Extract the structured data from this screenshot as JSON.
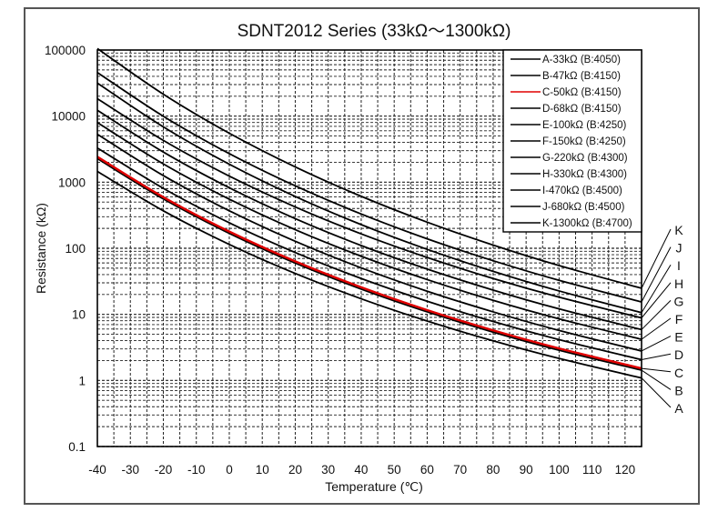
{
  "chart_data": {
    "type": "line",
    "title": "SDNT2012 Series (33kΩ～1300kΩ)",
    "xlabel": "Temperature (℃)",
    "ylabel": "Resistance (kΩ)",
    "xlim": [
      -40,
      125
    ],
    "ylim": [
      0.1,
      100000
    ],
    "yscale": "log",
    "grid": true,
    "legend_position": "top-right",
    "x_ticks": [
      "-40",
      "-30",
      "-20",
      "-10",
      "0",
      "10",
      "20",
      "30",
      "40",
      "50",
      "60",
      "70",
      "80",
      "90",
      "100",
      "110",
      "120"
    ],
    "y_ticks": [
      "100000",
      "10000",
      "1000",
      "100",
      "10",
      "1",
      "0.1"
    ],
    "x": [
      -40,
      -20,
      0,
      20,
      40,
      60,
      80,
      100,
      125
    ],
    "series": [
      {
        "name": "A-33kΩ (B:4050)",
        "label": "A",
        "color": "#000000",
        "values": [
          1455,
          369,
          114.4,
          41.6,
          17.2,
          7.92,
          3.98,
          2.15,
          1.09
        ]
      },
      {
        "name": "B-47kΩ (B:4150)",
        "label": "B",
        "color": "#000000",
        "values": [
          2275,
          558,
          168,
          59.6,
          24.1,
          10.9,
          5.38,
          2.86,
          1.43
        ]
      },
      {
        "name": "C-50kΩ (B:4150)",
        "label": "C",
        "color": "#e00000",
        "values": [
          2420,
          594,
          179,
          63.4,
          25.7,
          11.6,
          5.73,
          3.05,
          1.52
        ]
      },
      {
        "name": "D-68kΩ (B:4150)",
        "label": "D",
        "color": "#000000",
        "values": [
          3291,
          807,
          243,
          86.2,
          34.9,
          15.8,
          7.79,
          4.14,
          2.06
        ]
      },
      {
        "name": "E-100kΩ (B:4250)",
        "label": "E",
        "color": "#000000",
        "values": [
          5320,
          1260,
          369,
          127.5,
          50.5,
          22.4,
          10.9,
          5.7,
          2.79
        ]
      },
      {
        "name": "F-150kΩ (B:4250)",
        "label": "F",
        "color": "#000000",
        "values": [
          7980,
          1890,
          553,
          191,
          75.8,
          33.6,
          16.3,
          8.55,
          4.19
        ]
      },
      {
        "name": "G-220kΩ (B:4300)",
        "label": "G",
        "color": "#000000",
        "values": [
          12250,
          2857,
          824,
          281,
          110,
          48.4,
          23.3,
          12.1,
          5.88
        ]
      },
      {
        "name": "H-330kΩ (B:4300)",
        "label": "H",
        "color": "#000000",
        "values": [
          18380,
          4287,
          1236,
          422,
          165,
          72.5,
          34.9,
          18.2,
          8.82
        ]
      },
      {
        "name": "I-470kΩ (B:4500)",
        "label": "I",
        "color": "#000000",
        "values": [
          31580,
          6876,
          1871,
          608,
          228,
          96.3,
          44.8,
          22.6,
          10.6
        ]
      },
      {
        "name": "J-680kΩ (B:4500)",
        "label": "J",
        "color": "#000000",
        "values": [
          45700,
          9948,
          2707,
          880,
          330,
          139,
          64.8,
          32.7,
          15.4
        ]
      },
      {
        "name": "K-1300kΩ (B:4700)",
        "label": "K",
        "color": "#000000",
        "values": [
          105300,
          21420,
          5503,
          1701,
          611,
          248,
          111.7,
          54.7,
          24.8
        ]
      }
    ]
  }
}
